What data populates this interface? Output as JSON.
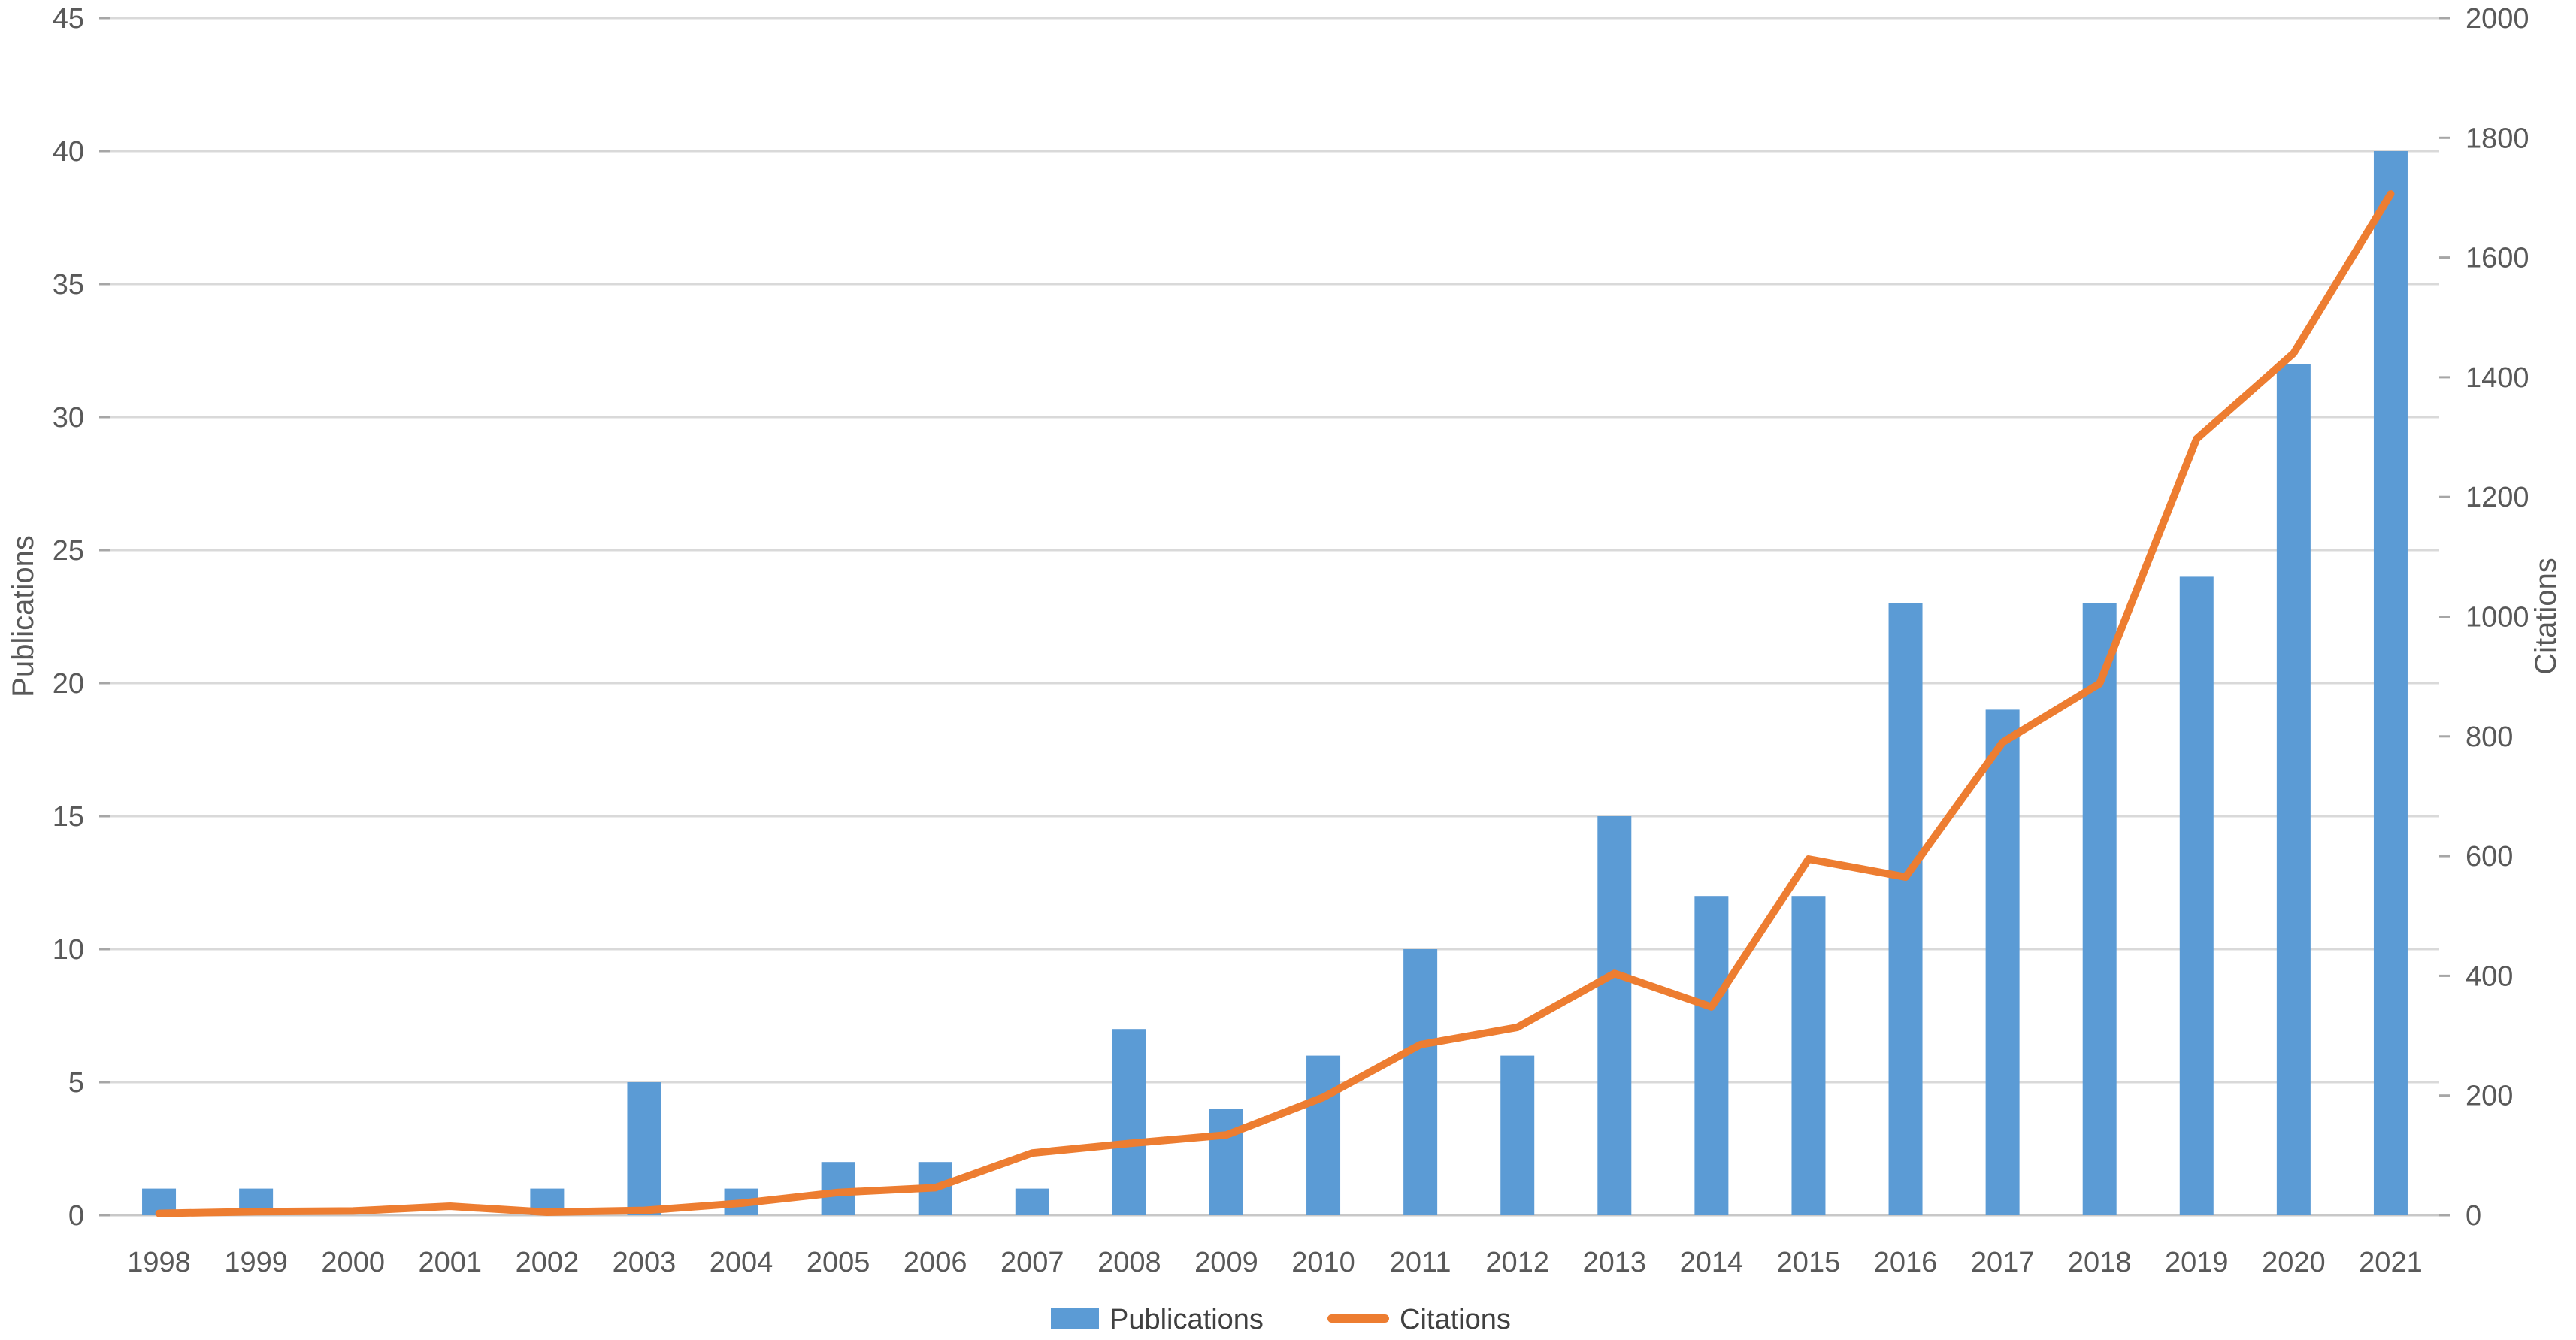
{
  "chart_data": {
    "type": "combo-bar-line",
    "title": "",
    "categories": [
      "1998",
      "1999",
      "2000",
      "2001",
      "2002",
      "2003",
      "2004",
      "2005",
      "2006",
      "2007",
      "2008",
      "2009",
      "2010",
      "2011",
      "2012",
      "2013",
      "2014",
      "2015",
      "2016",
      "2017",
      "2018",
      "2019",
      "2020",
      "2021"
    ],
    "series": [
      {
        "name": "Publications",
        "chart": "bar",
        "axis": "left",
        "color": "#5B9BD5",
        "values": [
          1,
          1,
          0,
          0,
          1,
          5,
          1,
          2,
          2,
          1,
          7,
          4,
          6,
          10,
          6,
          15,
          12,
          12,
          23,
          19,
          23,
          24,
          32,
          40
        ]
      },
      {
        "name": "Citations",
        "chart": "line",
        "axis": "right",
        "color": "#ED7D31",
        "values": [
          3,
          6,
          7,
          15,
          5,
          8,
          20,
          38,
          46,
          104,
          120,
          134,
          197,
          285,
          314,
          404,
          348,
          595,
          565,
          790,
          888,
          1297,
          1440,
          1706
        ]
      }
    ],
    "left_axis": {
      "title": "Publications",
      "min": 0,
      "max": 45,
      "step": 5,
      "tick_labels": [
        "0",
        "5",
        "10",
        "15",
        "20",
        "25",
        "30",
        "35",
        "40",
        "45"
      ]
    },
    "right_axis": {
      "title": "Citations",
      "min": 0,
      "max": 2000,
      "step": 200,
      "tick_labels": [
        "0",
        "200",
        "400",
        "600",
        "800",
        "1000",
        "1200",
        "1400",
        "1600",
        "1800",
        "2000"
      ]
    },
    "legend": {
      "position": "bottom-center",
      "items": [
        {
          "label": "Publications",
          "marker": "bar-swatch",
          "color": "#5B9BD5"
        },
        {
          "label": "Citations",
          "marker": "line-swatch",
          "color": "#ED7D31"
        }
      ]
    },
    "grid": "horizontal-major",
    "colors": {
      "bar": "#5B9BD5",
      "line": "#ED7D31",
      "gridline": "#D9D9D9",
      "axis_line": "#C8C8C8",
      "tick_mark": "#A6A6A6",
      "label_text": "#595959",
      "background": "#FFFFFF"
    }
  }
}
